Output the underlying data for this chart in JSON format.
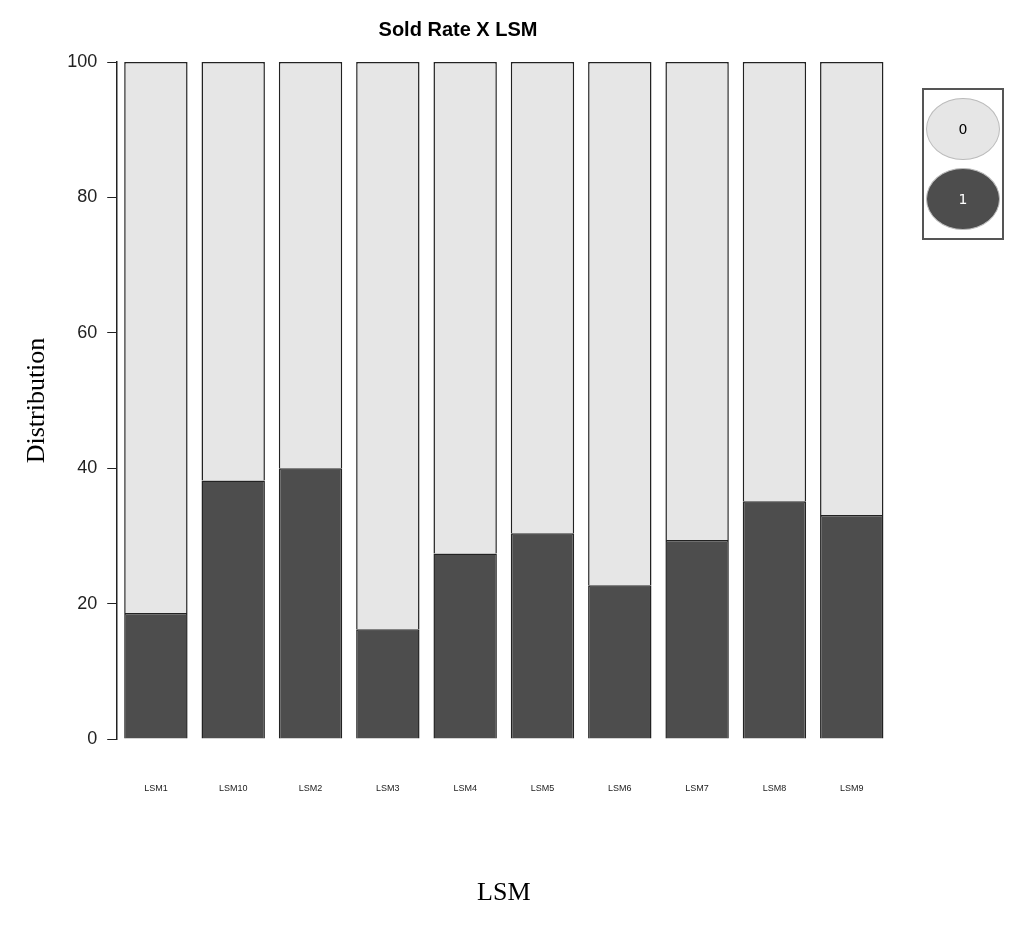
{
  "chart_data": {
    "type": "bar",
    "title": "Sold Rate X LSM",
    "xlabel": "LSM",
    "ylabel": "Distribution",
    "categories": [
      "LSM1",
      "LSM10",
      "LSM2",
      "LSM3",
      "LSM4",
      "LSM5",
      "LSM6",
      "LSM7",
      "LSM8",
      "LSM9"
    ],
    "stacked": true,
    "ylim": [
      0,
      100
    ],
    "yticks": [
      0,
      20,
      40,
      60,
      80,
      100
    ],
    "grid": false,
    "legend": "right",
    "series": [
      {
        "name": "1",
        "color": "#4d4d4d",
        "values": [
          18.6,
          38.2,
          40.0,
          16.2,
          27.4,
          30.4,
          22.7,
          29.4,
          35.1,
          33.1
        ]
      },
      {
        "name": "0",
        "color": "#e6e6e6",
        "values": [
          81.4,
          61.8,
          60.0,
          83.8,
          72.6,
          69.6,
          77.3,
          70.6,
          64.9,
          66.9
        ]
      }
    ]
  }
}
